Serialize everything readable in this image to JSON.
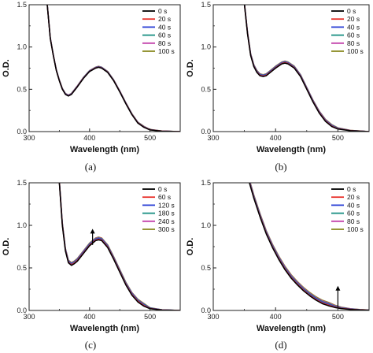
{
  "colors": {
    "black": "#000000",
    "red": "#e8312a",
    "blue": "#2a3fd6",
    "teal": "#1a8f83",
    "magenta": "#c03aa8",
    "olive": "#8a8a22"
  },
  "chart_data": [
    {
      "type": "line",
      "panel_label": "(a)",
      "xlabel": "Wavelength (nm)",
      "ylabel": "O.D.",
      "xlim": [
        300,
        550
      ],
      "ylim": [
        0,
        1.5
      ],
      "xticks": [
        "300",
        "400",
        "500"
      ],
      "yticks": [
        "0.0",
        "0.5",
        "1.0",
        "1.5"
      ],
      "legend_position": "top-right",
      "arrow": null,
      "series": [
        {
          "name": "0 s",
          "color": "#000000"
        },
        {
          "name": "20 s",
          "color": "#e8312a"
        },
        {
          "name": "40 s",
          "color": "#2a3fd6"
        },
        {
          "name": "60 s",
          "color": "#1a8f83"
        },
        {
          "name": "80 s",
          "color": "#c03aa8"
        },
        {
          "name": "100 s",
          "color": "#8a8a22"
        }
      ],
      "curve": {
        "x": [
          330,
          335,
          340,
          345,
          350,
          355,
          360,
          365,
          370,
          380,
          390,
          400,
          410,
          415,
          420,
          430,
          440,
          450,
          460,
          470,
          480,
          490,
          500,
          520,
          550
        ],
        "y": [
          1.5,
          1.1,
          0.9,
          0.72,
          0.6,
          0.5,
          0.44,
          0.42,
          0.44,
          0.53,
          0.63,
          0.71,
          0.75,
          0.76,
          0.75,
          0.7,
          0.6,
          0.47,
          0.33,
          0.2,
          0.1,
          0.05,
          0.02,
          0.005,
          0.0
        ]
      },
      "series_offsets": [
        0,
        0.003,
        0.006,
        0.008,
        0.01,
        0.012
      ]
    },
    {
      "type": "line",
      "panel_label": "(b)",
      "xlabel": "Wavelength (nm)",
      "ylabel": "O.D.",
      "xlim": [
        300,
        550
      ],
      "ylim": [
        0,
        1.5
      ],
      "xticks": [
        "300",
        "400",
        "500"
      ],
      "yticks": [
        "0.0",
        "0.5",
        "1.0",
        "1.5"
      ],
      "legend_position": "top-right",
      "arrow": null,
      "series": [
        {
          "name": "0 s",
          "color": "#000000"
        },
        {
          "name": "20 s",
          "color": "#e8312a"
        },
        {
          "name": "40 s",
          "color": "#2a3fd6"
        },
        {
          "name": "60 s",
          "color": "#1a8f83"
        },
        {
          "name": "80 s",
          "color": "#c03aa8"
        },
        {
          "name": "100 s",
          "color": "#8a8a22"
        }
      ],
      "curve": {
        "x": [
          350,
          355,
          360,
          365,
          370,
          375,
          380,
          385,
          390,
          400,
          410,
          415,
          420,
          430,
          440,
          450,
          460,
          470,
          480,
          490,
          500,
          520,
          550
        ],
        "y": [
          1.5,
          1.15,
          0.9,
          0.77,
          0.7,
          0.66,
          0.65,
          0.66,
          0.69,
          0.75,
          0.8,
          0.81,
          0.8,
          0.75,
          0.65,
          0.5,
          0.35,
          0.22,
          0.12,
          0.06,
          0.03,
          0.01,
          0.0
        ]
      },
      "series_offsets": [
        0,
        0.006,
        0.012,
        0.016,
        0.02,
        0.024
      ]
    },
    {
      "type": "line",
      "panel_label": "(c)",
      "xlabel": "Wavelength (nm)",
      "ylabel": "O.D.",
      "xlim": [
        300,
        550
      ],
      "ylim": [
        0,
        1.5
      ],
      "xticks": [
        "300",
        "400",
        "500"
      ],
      "yticks": [
        "0.0",
        "0.5",
        "1.0",
        "1.5"
      ],
      "legend_position": "top-right",
      "arrow": {
        "x": 405,
        "y_from": 0.77,
        "y_to": 0.95
      },
      "series": [
        {
          "name": "0 s",
          "color": "#000000"
        },
        {
          "name": "60 s",
          "color": "#e8312a"
        },
        {
          "name": "120 s",
          "color": "#2a3fd6"
        },
        {
          "name": "180 s",
          "color": "#1a8f83"
        },
        {
          "name": "240 s",
          "color": "#c03aa8"
        },
        {
          "name": "300 s",
          "color": "#8a8a22"
        }
      ],
      "curve": {
        "x": [
          350,
          355,
          360,
          365,
          370,
          375,
          380,
          390,
          400,
          410,
          415,
          420,
          430,
          440,
          450,
          460,
          470,
          480,
          490,
          500,
          520,
          550
        ],
        "y": [
          1.5,
          1.0,
          0.7,
          0.56,
          0.53,
          0.55,
          0.58,
          0.67,
          0.76,
          0.82,
          0.83,
          0.82,
          0.74,
          0.6,
          0.45,
          0.3,
          0.18,
          0.1,
          0.05,
          0.02,
          0.005,
          0.0
        ]
      },
      "series_offsets": [
        0,
        0.008,
        0.016,
        0.022,
        0.027,
        0.032
      ]
    },
    {
      "type": "line",
      "panel_label": "(d)",
      "xlabel": "Wavelength (nm)",
      "ylabel": "O.D.",
      "xlim": [
        300,
        550
      ],
      "ylim": [
        0,
        1.5
      ],
      "xticks": [
        "300",
        "400",
        "500"
      ],
      "yticks": [
        "0.0",
        "0.5",
        "1.0",
        "1.5"
      ],
      "legend_position": "top-right",
      "arrow": {
        "x": 500,
        "y_from": 0.04,
        "y_to": 0.28
      },
      "series": [
        {
          "name": "0 s",
          "color": "#000000"
        },
        {
          "name": "20 s",
          "color": "#e8312a"
        },
        {
          "name": "40 s",
          "color": "#2a3fd6"
        },
        {
          "name": "60 s",
          "color": "#1a8f83"
        },
        {
          "name": "80 s",
          "color": "#c03aa8"
        },
        {
          "name": "100 s",
          "color": "#8a8a22"
        }
      ],
      "curve": {
        "x": [
          358,
          365,
          375,
          385,
          395,
          405,
          415,
          425,
          435,
          445,
          455,
          465,
          475,
          485,
          495,
          505,
          520,
          535,
          550
        ],
        "y": [
          1.5,
          1.32,
          1.1,
          0.9,
          0.74,
          0.6,
          0.48,
          0.38,
          0.3,
          0.23,
          0.17,
          0.12,
          0.08,
          0.055,
          0.035,
          0.022,
          0.012,
          0.006,
          0.003
        ]
      },
      "series_offsets": [
        0,
        0.008,
        0.016,
        0.024,
        0.032,
        0.04
      ]
    }
  ]
}
